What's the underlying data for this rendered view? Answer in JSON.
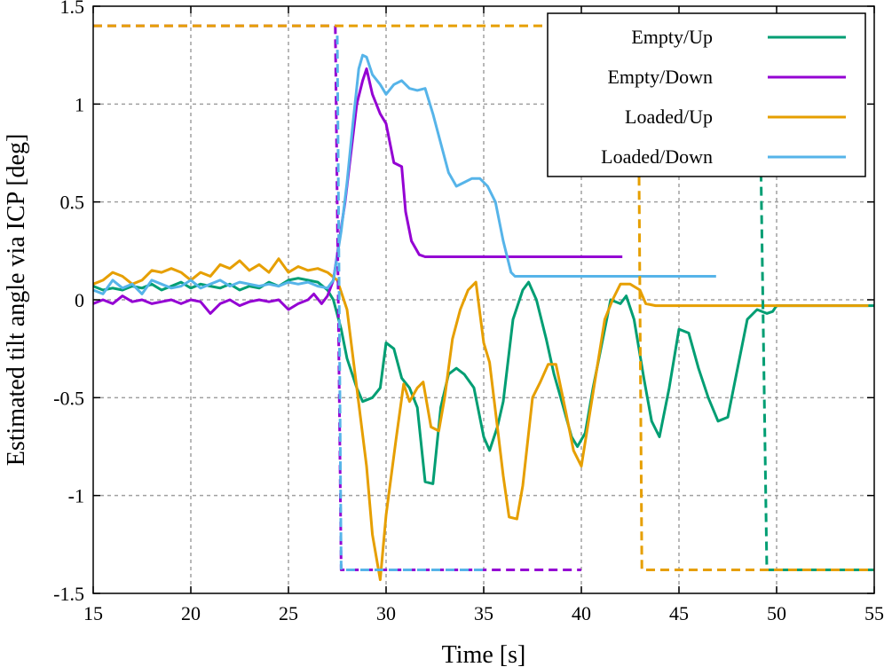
{
  "chart_data": {
    "type": "line",
    "xlabel": "Time [s]",
    "ylabel": "Estimated tilt angle via ICP [deg]",
    "xlim": [
      15,
      55
    ],
    "ylim": [
      -1.5,
      1.5
    ],
    "xticks": [
      15,
      20,
      25,
      30,
      35,
      40,
      45,
      50,
      55
    ],
    "yticks": [
      -1.5,
      -1,
      -0.5,
      0,
      0.5,
      1,
      1.5
    ],
    "xtick_labels": [
      "15",
      "20",
      "25",
      "30",
      "35",
      "40",
      "45",
      "50",
      "55"
    ],
    "ytick_labels": [
      "-1.5",
      "-1",
      "-0.5",
      "0",
      "0.5",
      "1",
      "1.5"
    ],
    "grid": true,
    "legend_position": "top-right",
    "series": [
      {
        "name": "Empty/Up",
        "color": "#009e73",
        "style": "solid",
        "points": [
          [
            15,
            0.07
          ],
          [
            15.5,
            0.05
          ],
          [
            16,
            0.06
          ],
          [
            16.5,
            0.05
          ],
          [
            17,
            0.07
          ],
          [
            17.5,
            0.06
          ],
          [
            18,
            0.08
          ],
          [
            18.5,
            0.05
          ],
          [
            19,
            0.07
          ],
          [
            19.5,
            0.09
          ],
          [
            20,
            0.06
          ],
          [
            20.5,
            0.08
          ],
          [
            21,
            0.07
          ],
          [
            21.5,
            0.06
          ],
          [
            22,
            0.08
          ],
          [
            22.5,
            0.05
          ],
          [
            23,
            0.07
          ],
          [
            23.5,
            0.06
          ],
          [
            24,
            0.09
          ],
          [
            24.5,
            0.07
          ],
          [
            25,
            0.1
          ],
          [
            25.5,
            0.11
          ],
          [
            26,
            0.1
          ],
          [
            26.5,
            0.09
          ],
          [
            27,
            0.05
          ],
          [
            27.3,
            0.0
          ],
          [
            27.7,
            -0.15
          ],
          [
            28,
            -0.3
          ],
          [
            28.5,
            -0.45
          ],
          [
            28.8,
            -0.52
          ],
          [
            29.3,
            -0.5
          ],
          [
            29.7,
            -0.45
          ],
          [
            30,
            -0.22
          ],
          [
            30.4,
            -0.25
          ],
          [
            30.8,
            -0.4
          ],
          [
            31.2,
            -0.45
          ],
          [
            31.6,
            -0.55
          ],
          [
            32,
            -0.93
          ],
          [
            32.4,
            -0.94
          ],
          [
            32.8,
            -0.55
          ],
          [
            33.2,
            -0.38
          ],
          [
            33.6,
            -0.35
          ],
          [
            34,
            -0.38
          ],
          [
            34.5,
            -0.45
          ],
          [
            35,
            -0.7
          ],
          [
            35.3,
            -0.77
          ],
          [
            35.7,
            -0.65
          ],
          [
            36,
            -0.52
          ],
          [
            36.5,
            -0.1
          ],
          [
            37,
            0.05
          ],
          [
            37.3,
            0.09
          ],
          [
            37.7,
            0.0
          ],
          [
            38.2,
            -0.2
          ],
          [
            38.6,
            -0.38
          ],
          [
            39,
            -0.52
          ],
          [
            39.5,
            -0.7
          ],
          [
            39.8,
            -0.75
          ],
          [
            40.2,
            -0.68
          ],
          [
            40.6,
            -0.45
          ],
          [
            41,
            -0.25
          ],
          [
            41.5,
            0.0
          ],
          [
            42,
            -0.02
          ],
          [
            42.3,
            0.02
          ],
          [
            42.7,
            -0.1
          ],
          [
            43.2,
            -0.4
          ],
          [
            43.6,
            -0.62
          ],
          [
            44,
            -0.7
          ],
          [
            44.5,
            -0.45
          ],
          [
            45,
            -0.15
          ],
          [
            45.5,
            -0.17
          ],
          [
            46,
            -0.35
          ],
          [
            46.5,
            -0.5
          ],
          [
            47,
            -0.62
          ],
          [
            47.5,
            -0.6
          ],
          [
            48,
            -0.35
          ],
          [
            48.5,
            -0.1
          ],
          [
            49,
            -0.05
          ],
          [
            49.5,
            -0.07
          ],
          [
            49.8,
            -0.06
          ],
          [
            50,
            -0.03
          ],
          [
            51,
            -0.03
          ],
          [
            52,
            -0.03
          ],
          [
            53,
            -0.03
          ],
          [
            54,
            -0.03
          ],
          [
            55,
            -0.03
          ]
        ]
      },
      {
        "name": "Empty/Down",
        "color": "#9400d3",
        "style": "solid",
        "points": [
          [
            15,
            -0.02
          ],
          [
            15.5,
            0.0
          ],
          [
            16,
            -0.02
          ],
          [
            16.5,
            0.02
          ],
          [
            17,
            -0.01
          ],
          [
            17.5,
            0.0
          ],
          [
            18,
            -0.02
          ],
          [
            18.5,
            -0.01
          ],
          [
            19,
            0.0
          ],
          [
            19.5,
            -0.02
          ],
          [
            20,
            0.0
          ],
          [
            20.5,
            -0.01
          ],
          [
            21,
            -0.07
          ],
          [
            21.5,
            -0.02
          ],
          [
            22,
            0.0
          ],
          [
            22.5,
            -0.03
          ],
          [
            23,
            -0.01
          ],
          [
            23.5,
            0.0
          ],
          [
            24,
            -0.01
          ],
          [
            24.5,
            0.0
          ],
          [
            25,
            -0.05
          ],
          [
            25.5,
            -0.02
          ],
          [
            26,
            0.0
          ],
          [
            26.3,
            0.03
          ],
          [
            26.7,
            -0.02
          ],
          [
            27,
            0.02
          ],
          [
            27.3,
            0.1
          ],
          [
            27.6,
            0.3
          ],
          [
            27.9,
            0.5
          ],
          [
            28.2,
            0.75
          ],
          [
            28.5,
            1.0
          ],
          [
            28.8,
            1.12
          ],
          [
            29,
            1.18
          ],
          [
            29.3,
            1.05
          ],
          [
            29.7,
            0.95
          ],
          [
            30,
            0.9
          ],
          [
            30.4,
            0.7
          ],
          [
            30.8,
            0.68
          ],
          [
            31,
            0.45
          ],
          [
            31.3,
            0.3
          ],
          [
            31.7,
            0.23
          ],
          [
            32,
            0.22
          ],
          [
            33,
            0.22
          ],
          [
            34,
            0.22
          ],
          [
            35,
            0.22
          ],
          [
            36,
            0.22
          ],
          [
            37,
            0.22
          ],
          [
            38,
            0.22
          ],
          [
            39,
            0.22
          ],
          [
            40,
            0.22
          ],
          [
            41,
            0.22
          ],
          [
            42.1,
            0.22
          ]
        ]
      },
      {
        "name": "Loaded/Up",
        "color": "#e69f00",
        "style": "solid",
        "points": [
          [
            15,
            0.08
          ],
          [
            15.5,
            0.1
          ],
          [
            16,
            0.14
          ],
          [
            16.5,
            0.12
          ],
          [
            17,
            0.08
          ],
          [
            17.5,
            0.1
          ],
          [
            18,
            0.15
          ],
          [
            18.5,
            0.14
          ],
          [
            19,
            0.16
          ],
          [
            19.5,
            0.14
          ],
          [
            20,
            0.1
          ],
          [
            20.5,
            0.14
          ],
          [
            21,
            0.12
          ],
          [
            21.5,
            0.18
          ],
          [
            22,
            0.16
          ],
          [
            22.5,
            0.2
          ],
          [
            23,
            0.15
          ],
          [
            23.5,
            0.18
          ],
          [
            24,
            0.14
          ],
          [
            24.5,
            0.21
          ],
          [
            25,
            0.14
          ],
          [
            25.5,
            0.17
          ],
          [
            26,
            0.15
          ],
          [
            26.5,
            0.16
          ],
          [
            27,
            0.14
          ],
          [
            27.5,
            0.1
          ],
          [
            28,
            -0.05
          ],
          [
            28.5,
            -0.45
          ],
          [
            29,
            -0.85
          ],
          [
            29.3,
            -1.2
          ],
          [
            29.7,
            -1.43
          ],
          [
            30,
            -1.1
          ],
          [
            30.5,
            -0.72
          ],
          [
            30.9,
            -0.43
          ],
          [
            31.2,
            -0.52
          ],
          [
            31.6,
            -0.45
          ],
          [
            31.9,
            -0.42
          ],
          [
            32.3,
            -0.65
          ],
          [
            32.7,
            -0.67
          ],
          [
            33,
            -0.5
          ],
          [
            33.4,
            -0.2
          ],
          [
            33.8,
            -0.05
          ],
          [
            34.2,
            0.05
          ],
          [
            34.6,
            0.09
          ],
          [
            35,
            -0.22
          ],
          [
            35.3,
            -0.32
          ],
          [
            35.7,
            -0.65
          ],
          [
            36,
            -0.9
          ],
          [
            36.3,
            -1.11
          ],
          [
            36.7,
            -1.12
          ],
          [
            37,
            -0.95
          ],
          [
            37.5,
            -0.5
          ],
          [
            37.9,
            -0.42
          ],
          [
            38.3,
            -0.33
          ],
          [
            38.7,
            -0.33
          ],
          [
            39.2,
            -0.57
          ],
          [
            39.6,
            -0.77
          ],
          [
            40,
            -0.85
          ],
          [
            40.4,
            -0.6
          ],
          [
            40.8,
            -0.35
          ],
          [
            41.2,
            -0.1
          ],
          [
            41.6,
            0.0
          ],
          [
            42,
            0.08
          ],
          [
            42.5,
            0.08
          ],
          [
            43,
            0.05
          ],
          [
            43.3,
            -0.02
          ],
          [
            43.8,
            -0.03
          ],
          [
            44,
            -0.03
          ],
          [
            45,
            -0.03
          ],
          [
            46,
            -0.03
          ],
          [
            47,
            -0.03
          ],
          [
            48,
            -0.03
          ],
          [
            49,
            -0.03
          ],
          [
            50,
            -0.03
          ],
          [
            51,
            -0.03
          ],
          [
            52,
            -0.03
          ],
          [
            53,
            -0.03
          ],
          [
            54,
            -0.03
          ],
          [
            54.7,
            -0.03
          ]
        ]
      },
      {
        "name": "Loaded/Down",
        "color": "#56b4e9",
        "style": "solid",
        "points": [
          [
            15,
            0.05
          ],
          [
            15.5,
            0.03
          ],
          [
            16,
            0.1
          ],
          [
            16.5,
            0.06
          ],
          [
            17,
            0.08
          ],
          [
            17.5,
            0.03
          ],
          [
            18,
            0.1
          ],
          [
            18.5,
            0.08
          ],
          [
            19,
            0.06
          ],
          [
            19.5,
            0.07
          ],
          [
            20,
            0.1
          ],
          [
            20.5,
            0.06
          ],
          [
            21,
            0.08
          ],
          [
            21.5,
            0.1
          ],
          [
            22,
            0.07
          ],
          [
            22.5,
            0.09
          ],
          [
            23,
            0.08
          ],
          [
            23.5,
            0.07
          ],
          [
            24,
            0.08
          ],
          [
            24.5,
            0.07
          ],
          [
            25,
            0.09
          ],
          [
            25.5,
            0.08
          ],
          [
            26,
            0.09
          ],
          [
            26.5,
            0.07
          ],
          [
            27,
            0.06
          ],
          [
            27.3,
            0.1
          ],
          [
            27.7,
            0.35
          ],
          [
            28,
            0.6
          ],
          [
            28.3,
            0.9
          ],
          [
            28.6,
            1.18
          ],
          [
            28.8,
            1.25
          ],
          [
            29,
            1.24
          ],
          [
            29.3,
            1.15
          ],
          [
            29.7,
            1.1
          ],
          [
            30,
            1.05
          ],
          [
            30.4,
            1.1
          ],
          [
            30.8,
            1.12
          ],
          [
            31.2,
            1.08
          ],
          [
            31.6,
            1.07
          ],
          [
            32,
            1.08
          ],
          [
            32.4,
            0.95
          ],
          [
            32.8,
            0.8
          ],
          [
            33.2,
            0.65
          ],
          [
            33.6,
            0.58
          ],
          [
            34,
            0.6
          ],
          [
            34.4,
            0.62
          ],
          [
            34.8,
            0.62
          ],
          [
            35.2,
            0.58
          ],
          [
            35.6,
            0.5
          ],
          [
            36,
            0.3
          ],
          [
            36.4,
            0.14
          ],
          [
            36.6,
            0.12
          ],
          [
            37,
            0.12
          ],
          [
            38,
            0.12
          ],
          [
            39,
            0.12
          ],
          [
            40,
            0.12
          ],
          [
            41,
            0.12
          ],
          [
            42,
            0.12
          ],
          [
            43,
            0.12
          ],
          [
            44,
            0.12
          ],
          [
            45,
            0.12
          ],
          [
            46,
            0.12
          ],
          [
            46.9,
            0.12
          ]
        ]
      },
      {
        "name": "",
        "color": "#009e73",
        "style": "dashed",
        "points": [
          [
            49.2,
            0.65
          ],
          [
            49.5,
            -1.38
          ],
          [
            55,
            -1.38
          ]
        ]
      },
      {
        "name": "",
        "color": "#9400d3",
        "style": "dashed",
        "points": [
          [
            15,
            1.4
          ],
          [
            27.4,
            1.4
          ],
          [
            27.7,
            -1.38
          ],
          [
            40,
            -1.38
          ]
        ]
      },
      {
        "name": "",
        "color": "#e69f00",
        "style": "dashed",
        "points": [
          [
            15,
            1.4
          ],
          [
            42.9,
            1.4
          ],
          [
            43.1,
            -1.38
          ],
          [
            55,
            -1.38
          ]
        ]
      },
      {
        "name": "",
        "color": "#56b4e9",
        "style": "dashed",
        "points": [
          [
            27.5,
            1.35
          ],
          [
            27.7,
            -1.38
          ],
          [
            35,
            -1.38
          ]
        ]
      }
    ],
    "legend": [
      {
        "label": "Empty/Up",
        "color": "#009e73"
      },
      {
        "label": "Empty/Down",
        "color": "#9400d3"
      },
      {
        "label": "Loaded/Up",
        "color": "#e69f00"
      },
      {
        "label": "Loaded/Down",
        "color": "#56b4e9"
      }
    ]
  }
}
